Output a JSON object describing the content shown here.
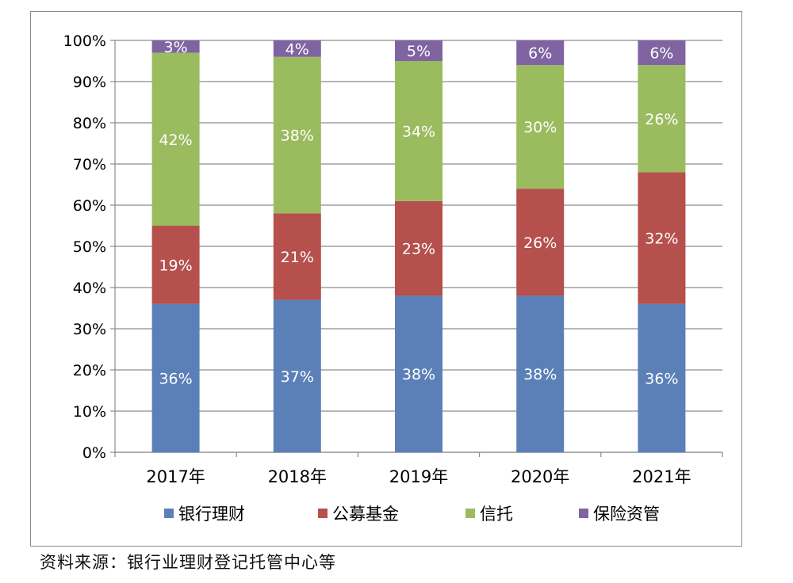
{
  "chart_data": {
    "type": "bar",
    "stacked": true,
    "categories": [
      "2017年",
      "2018年",
      "2019年",
      "2020年",
      "2021年"
    ],
    "series": [
      {
        "name": "银行理财",
        "color": "#5b80b8",
        "values": [
          36,
          37,
          38,
          38,
          36
        ],
        "labels": [
          "36%",
          "37%",
          "38%",
          "38%",
          "36%"
        ]
      },
      {
        "name": "公募基金",
        "color": "#b5504c",
        "values": [
          19,
          21,
          23,
          26,
          32
        ],
        "labels": [
          "19%",
          "21%",
          "23%",
          "26%",
          "32%"
        ]
      },
      {
        "name": "信托",
        "color": "#9bbb5f",
        "values": [
          42,
          38,
          34,
          30,
          26
        ],
        "labels": [
          "42%",
          "38%",
          "34%",
          "30%",
          "26%"
        ]
      },
      {
        "name": "保险资管",
        "color": "#8064a2",
        "values": [
          3,
          4,
          5,
          6,
          6
        ],
        "labels": [
          "3%",
          "4%",
          "5%",
          "6%",
          "6%"
        ]
      }
    ],
    "ylim": [
      0,
      100
    ],
    "yticks": [
      "0%",
      "10%",
      "20%",
      "30%",
      "40%",
      "50%",
      "60%",
      "70%",
      "80%",
      "90%",
      "100%"
    ],
    "grid": true,
    "legend_position": "bottom"
  },
  "source_note": "资料来源：银行业理财登记托管中心等"
}
